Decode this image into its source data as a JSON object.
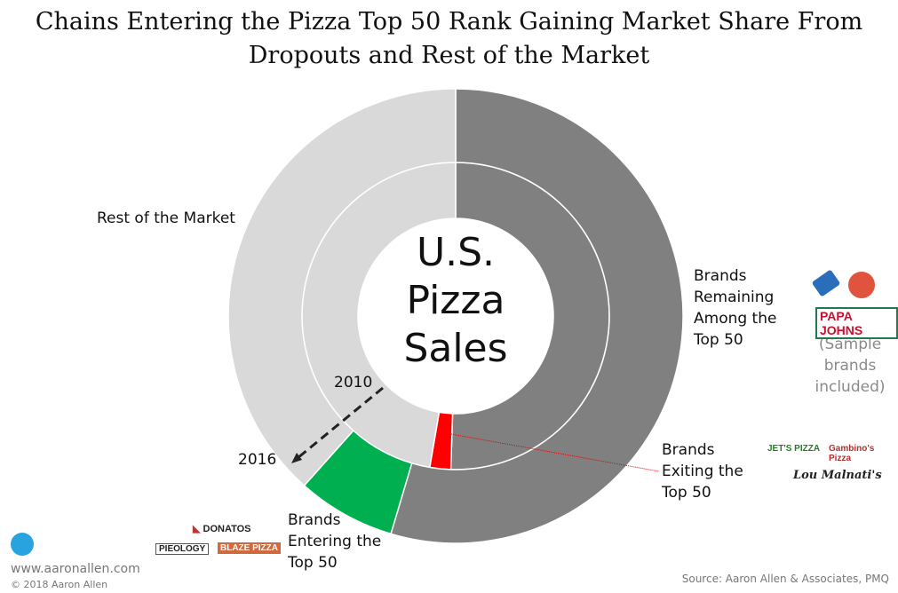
{
  "title": "Chains Entering the Pizza Top 50 Rank Gaining Market Share From Dropouts and Rest of the Market",
  "center_label": [
    "U.S.",
    "Pizza",
    "Sales"
  ],
  "chart_data": {
    "type": "pie",
    "subtype": "nested-donut",
    "title": "Chains Entering the Pizza Top 50 Rank Gaining Market Share From Dropouts and Rest of the Market",
    "rings": [
      {
        "name": "2010",
        "position": "inner",
        "slices": [
          {
            "label": "Brands Remaining Among the Top 50",
            "value": 50.5,
            "color": "#808080"
          },
          {
            "label": "Brands Exiting the Top 50",
            "value": 2.2,
            "color": "#ff0000"
          },
          {
            "label": "Rest of the Market",
            "value": 47.3,
            "color": "#d9d9d9"
          }
        ]
      },
      {
        "name": "2016",
        "position": "outer",
        "slices": [
          {
            "label": "Brands Remaining Among the Top 50",
            "value": 54.6,
            "color": "#808080"
          },
          {
            "label": "Brands Entering the Top 50",
            "value": 7.0,
            "color": "#00b050"
          },
          {
            "label": "Rest of the Market",
            "value": 38.4,
            "color": "#d9d9d9"
          }
        ]
      }
    ]
  },
  "labels": {
    "rest": "Rest of the Market",
    "remaining": [
      "Brands",
      "Remaining",
      "Among the",
      "Top 50"
    ],
    "exiting": [
      "Brands",
      "Exiting the",
      "Top 50"
    ],
    "entering": [
      "Brands",
      "Entering the",
      "Top 50"
    ],
    "year_inner": "2010",
    "year_outer": "2016",
    "sample": [
      "(Sample",
      "brands",
      "included)"
    ]
  },
  "logos": {
    "remaining": [
      "Domino's",
      "Pizza Hut",
      "PAPA JOHNS"
    ],
    "exiting": [
      "JET'S PIZZA",
      "Gambino's Pizza",
      "Lou Malnati's"
    ],
    "entering": [
      "DONATOS",
      "PIEOLOGY",
      "BLAZE PIZZA"
    ]
  },
  "footer": {
    "website": "www.aaronallen.com",
    "copyright": "© 2018 Aaron Allen",
    "source": "Source: Aaron Allen & Associates, PMQ"
  }
}
